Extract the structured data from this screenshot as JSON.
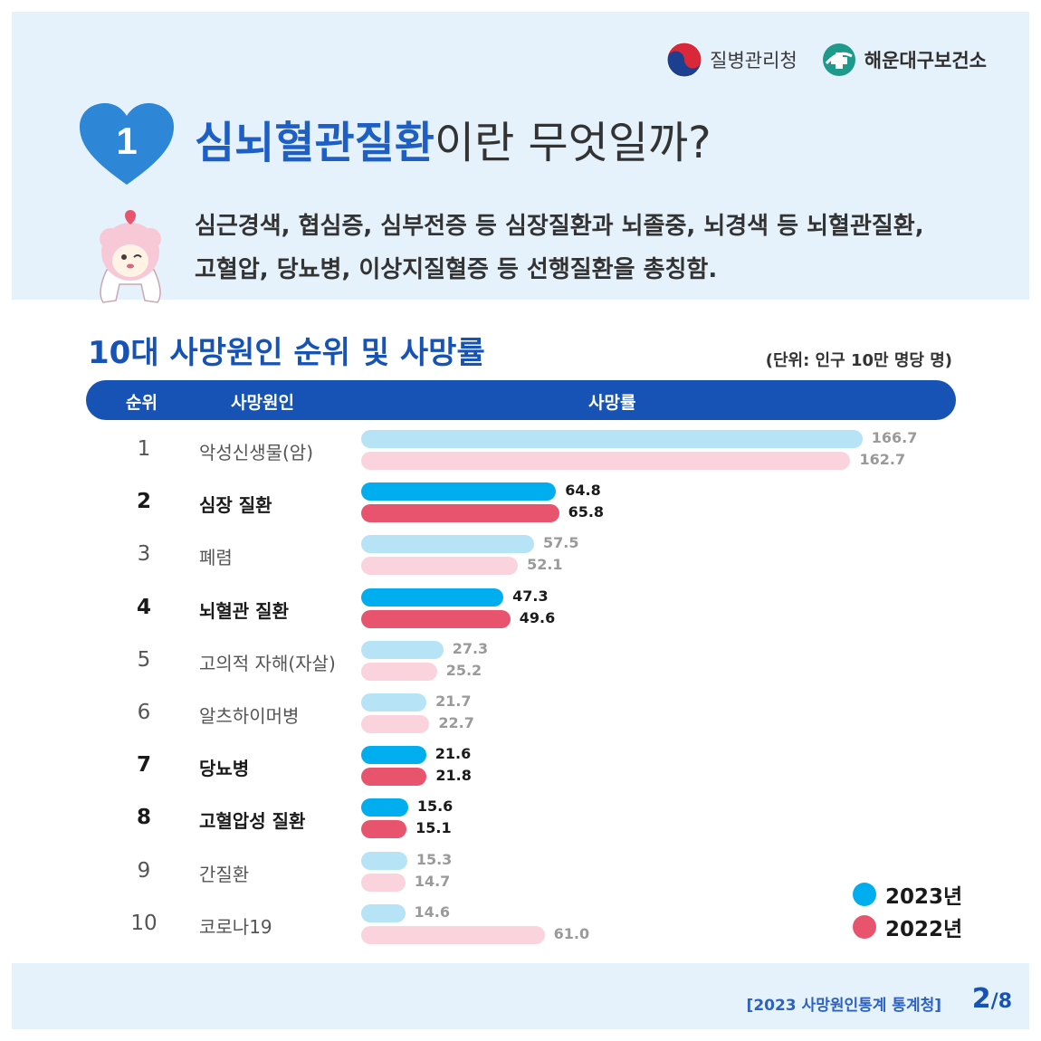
{
  "logos": {
    "kdca": "질병관리청",
    "health_center": "해운대구보건소"
  },
  "title": {
    "number": "1",
    "highlight": "심뇌혈관질환",
    "rest": "이란 무엇일까?"
  },
  "description": {
    "line1": "심근경색, 협심증, 심부전증 등 심장질환과 뇌졸중, 뇌경색 등 뇌혈관질환,",
    "line2": "고혈압, 당뇨병, 이상지질혈증 등 선행질환을 총칭함."
  },
  "section": {
    "title": "10대 사망원인 순위 및 사망률",
    "unit": "(단위: 인구 10만 명당 명)"
  },
  "table_header": {
    "rank": "순위",
    "cause": "사망원인",
    "rate": "사망률"
  },
  "chart_data": {
    "type": "bar",
    "orientation": "horizontal",
    "categories": [
      "악성신생물(암)",
      "심장 질환",
      "폐렴",
      "뇌혈관 질환",
      "고의적 자해(자살)",
      "알츠하이머병",
      "당뇨병",
      "고혈압성 질환",
      "간질환",
      "코로나19"
    ],
    "ranks": [
      "1",
      "2",
      "3",
      "4",
      "5",
      "6",
      "7",
      "8",
      "9",
      "10"
    ],
    "highlighted": [
      false,
      true,
      false,
      true,
      false,
      false,
      true,
      true,
      false,
      false
    ],
    "series": [
      {
        "name": "2023년",
        "values": [
          166.7,
          64.8,
          57.5,
          47.3,
          27.3,
          21.7,
          21.6,
          15.6,
          15.3,
          14.6
        ],
        "value_labels": [
          "166.7",
          "64.8",
          "57.5",
          "47.3",
          "27.3",
          "21.7",
          "21.6",
          "15.6",
          "15.3",
          "14.6"
        ]
      },
      {
        "name": "2022년",
        "values": [
          162.7,
          65.8,
          52.1,
          49.6,
          25.2,
          22.7,
          21.8,
          15.1,
          14.7,
          61.0
        ],
        "value_labels": [
          "162.7",
          "65.8",
          "52.1",
          "49.6",
          "25.2",
          "22.7",
          "21.8",
          "15.1",
          "14.7",
          "61.0"
        ]
      }
    ],
    "colors": {
      "2023_strong": "#00aeef",
      "2023_light": "#b7e3f7",
      "2022_strong": "#e8546e",
      "2022_light": "#fad3dc"
    },
    "xlim": [
      0,
      170
    ],
    "grid": false,
    "legend": "bottom-right"
  },
  "footer": {
    "source": "[2023 사망원인통계 통계청]",
    "page_current": "2",
    "page_total": "/8"
  }
}
